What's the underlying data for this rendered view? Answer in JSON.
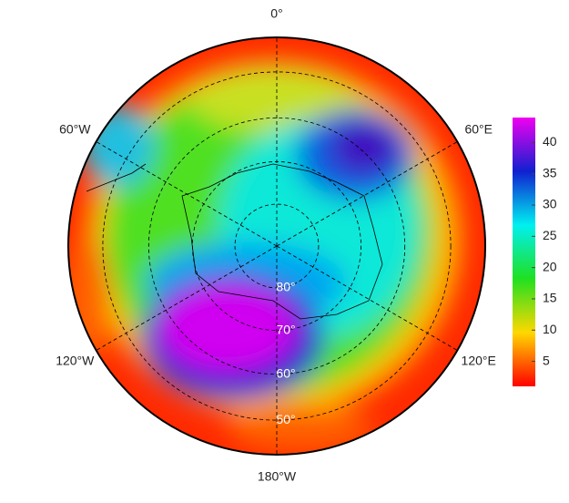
{
  "map": {
    "projection": "south polar stereographic",
    "longitude_ticks": [
      {
        "value": 0,
        "label": "0°"
      },
      {
        "value": 60,
        "label": "60°E"
      },
      {
        "value": 120,
        "label": "120°E"
      },
      {
        "value": 180,
        "label": "180°W"
      },
      {
        "value": -120,
        "label": "120°W"
      },
      {
        "value": -60,
        "label": "60°W"
      }
    ],
    "latitude_ticks": [
      {
        "value": 80,
        "label": "80°"
      },
      {
        "value": 70,
        "label": "70°"
      },
      {
        "value": 60,
        "label": "60°"
      },
      {
        "value": 50,
        "label": "50°"
      }
    ],
    "colorbar": {
      "lim": [
        1,
        44
      ],
      "ticks": [
        5,
        10,
        15,
        20,
        25,
        30,
        35,
        40
      ]
    }
  }
}
